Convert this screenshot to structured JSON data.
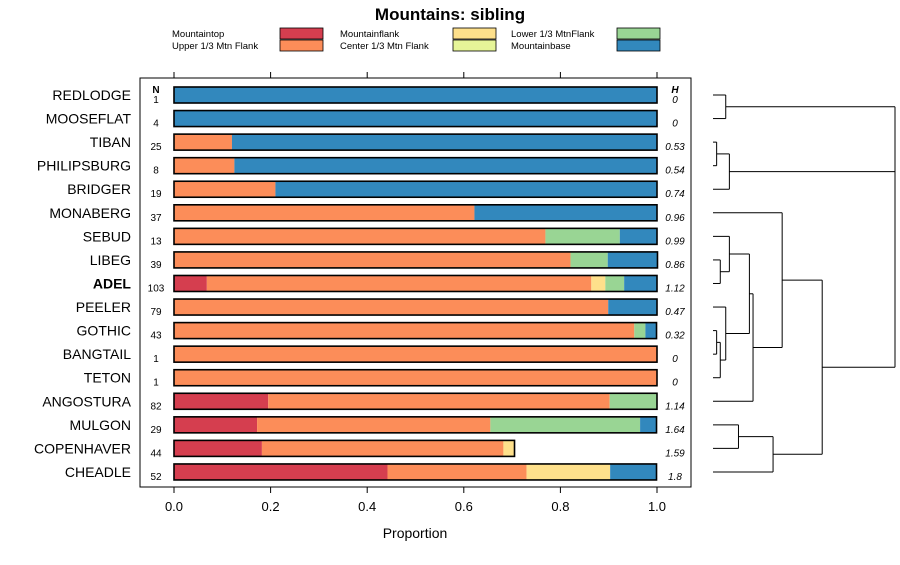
{
  "chart_data": {
    "type": "bar",
    "orientation": "horizontal",
    "stacked": true,
    "title": "Mountains: sibling",
    "xlabel": "Proportion",
    "ylabel": "",
    "xlim": [
      0,
      1
    ],
    "x_ticks": [
      0,
      0.2,
      0.4,
      0.6,
      0.8,
      1
    ],
    "x_tick_labels": [
      "0.0",
      "0.2",
      "0.4",
      "0.6",
      "0.8",
      "1.0"
    ],
    "n_header": "N",
    "h_header": "H",
    "highlighted_category": "ADEL",
    "legend_position": "top",
    "legend": [
      {
        "name": "Mountaintop",
        "color": "#d53e4f"
      },
      {
        "name": "Upper 1/3 Mtn Flank",
        "color": "#fc8d59"
      },
      {
        "name": "Mountainflank",
        "color": "#fee08b"
      },
      {
        "name": "Center 1/3 Mtn Flank",
        "color": "#e6f598"
      },
      {
        "name": "Lower 1/3 MtnFlank",
        "color": "#99d594"
      },
      {
        "name": "Mountainbase",
        "color": "#3288bd"
      }
    ],
    "categories": [
      "REDLODGE",
      "MOOSEFLAT",
      "TIBAN",
      "PHILIPSBURG",
      "BRIDGER",
      "MONABERG",
      "SEBUD",
      "LIBEG",
      "ADEL",
      "PEELER",
      "GOTHIC",
      "BANGTAIL",
      "TETON",
      "ANGOSTURA",
      "MULGON",
      "COPENHAVER",
      "CHEADLE"
    ],
    "n": [
      "1",
      "4",
      "25",
      "8",
      "19",
      "37",
      "13",
      "39",
      "103",
      "79",
      "43",
      "1",
      "1",
      "82",
      "29",
      "44",
      "52"
    ],
    "h": [
      "0",
      "0",
      "0.53",
      "0.54",
      "0.74",
      "0.96",
      "0.99",
      "0.86",
      "1.12",
      "0.47",
      "0.32",
      "0",
      "0",
      "1.14",
      "1.64",
      "1.59",
      "1.8"
    ],
    "series": [
      {
        "name": "Mountaintop",
        "values": [
          0,
          0,
          0,
          0,
          0,
          0,
          0,
          0,
          0.068,
          0,
          0,
          0,
          0,
          0.195,
          0.172,
          0.182,
          0.442
        ]
      },
      {
        "name": "Upper 1/3 Mtn Flank",
        "values": [
          0,
          0,
          0.12,
          0.125,
          0.21,
          0.622,
          0.769,
          0.821,
          0.796,
          0.899,
          0.953,
          1,
          1,
          0.707,
          0.483,
          0.5,
          0.288
        ]
      },
      {
        "name": "Mountainflank",
        "values": [
          0,
          0,
          0,
          0,
          0,
          0,
          0,
          0,
          0.029,
          0,
          0,
          0,
          0,
          0,
          0,
          0.023,
          0.173
        ]
      },
      {
        "name": "Center 1/3 Mtn Flank",
        "values": [
          0,
          0,
          0,
          0,
          0,
          0,
          0,
          0,
          0,
          0,
          0,
          0,
          0,
          0,
          0,
          0,
          0
        ]
      },
      {
        "name": "Lower 1/3 MtnFlank",
        "values": [
          0,
          0,
          0,
          0,
          0,
          0,
          0.154,
          0.077,
          0.039,
          0,
          0.023,
          0,
          0,
          0.098,
          0.31,
          0,
          0
        ]
      },
      {
        "name": "Mountainbase",
        "values": [
          1,
          1,
          0.88,
          0.875,
          0.79,
          0.378,
          0.077,
          0.103,
          0.068,
          0.101,
          0.023,
          0,
          0,
          0,
          0.034,
          0,
          0.096
        ]
      }
    ]
  }
}
